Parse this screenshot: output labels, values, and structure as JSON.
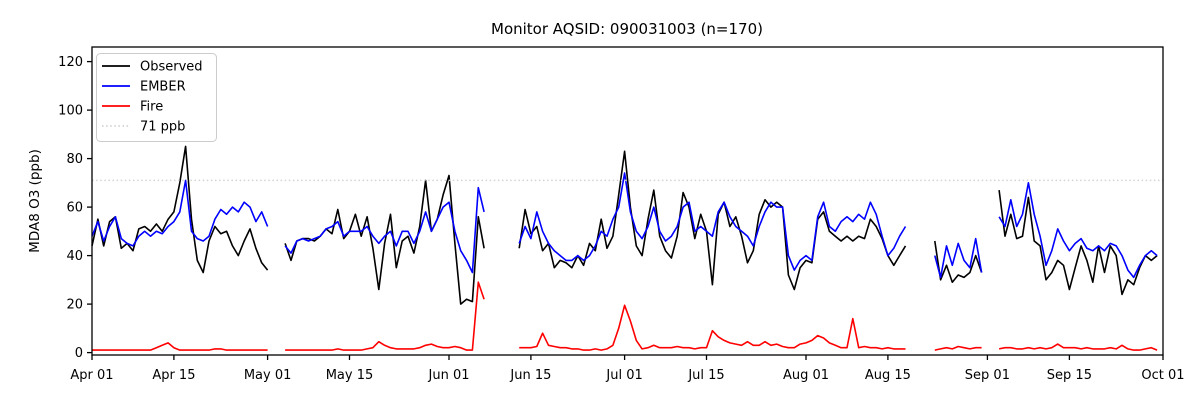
{
  "chart_data": {
    "type": "line",
    "title": "Monitor AQSID: 090031003 (n=170)",
    "ylabel": "MDA8 O3 (ppb)",
    "xlabel": "",
    "ylim": [
      -1,
      126
    ],
    "yticks": [
      0,
      20,
      40,
      60,
      80,
      100,
      120
    ],
    "x_total_days": 183,
    "x_start_label": "Apr 01",
    "x_end_label": "Oct 01",
    "grid": false,
    "legend_position": "upper-left",
    "xticks": [
      {
        "day": 0,
        "label": "Apr 01"
      },
      {
        "day": 14,
        "label": "Apr 15"
      },
      {
        "day": 30,
        "label": "May 01"
      },
      {
        "day": 44,
        "label": "May 15"
      },
      {
        "day": 61,
        "label": "Jun 01"
      },
      {
        "day": 75,
        "label": "Jun 15"
      },
      {
        "day": 91,
        "label": "Jul 01"
      },
      {
        "day": 105,
        "label": "Jul 15"
      },
      {
        "day": 122,
        "label": "Aug 01"
      },
      {
        "day": 136,
        "label": "Aug 15"
      },
      {
        "day": 153,
        "label": "Sep 01"
      },
      {
        "day": 167,
        "label": "Sep 15"
      },
      {
        "day": 183,
        "label": "Oct 01"
      }
    ],
    "threshold": {
      "value": 71,
      "label": "71 ppb",
      "color": "#d3d3d3",
      "style": "dotted"
    },
    "legend": [
      {
        "id": "observed",
        "label": "Observed",
        "color": "#000000",
        "dotted": false
      },
      {
        "id": "ember",
        "label": "EMBER",
        "color": "#0000ff",
        "dotted": false
      },
      {
        "id": "fire",
        "label": "Fire",
        "color": "#ff0000",
        "dotted": false
      },
      {
        "id": "threshold",
        "label": "71 ppb",
        "color": "#d3d3d3",
        "dotted": true
      }
    ],
    "series": [
      {
        "id": "observed",
        "name": "Observed",
        "color": "#000000",
        "values": [
          44,
          55,
          44,
          54,
          56,
          43,
          45,
          42,
          51,
          52,
          50,
          53,
          50,
          55,
          58,
          70,
          85,
          55,
          38,
          33,
          46,
          52,
          49,
          50,
          44,
          40,
          46,
          51,
          43,
          37,
          34,
          null,
          null,
          45,
          38,
          46,
          47,
          47,
          46,
          48,
          51,
          49,
          59,
          47,
          50,
          57,
          48,
          56,
          43,
          26,
          45,
          57,
          35,
          46,
          48,
          41,
          52,
          71,
          50,
          55,
          65,
          73,
          45,
          20,
          22,
          21,
          56,
          43,
          null,
          null,
          null,
          null,
          null,
          43,
          59,
          49,
          52,
          42,
          45,
          35,
          38,
          37,
          35,
          40,
          36,
          45,
          42,
          55,
          43,
          48,
          65,
          83,
          60,
          44,
          40,
          55,
          67,
          48,
          42,
          39,
          48,
          66,
          60,
          47,
          57,
          50,
          28,
          57,
          62,
          52,
          56,
          48,
          37,
          42,
          57,
          63,
          60,
          62,
          60,
          32,
          26,
          35,
          38,
          37,
          55,
          58,
          50,
          48,
          46,
          48,
          46,
          48,
          47,
          55,
          52,
          47,
          40,
          36,
          40,
          44,
          null,
          null,
          null,
          null,
          46,
          30,
          36,
          29,
          32,
          31,
          33,
          40,
          33,
          null,
          null,
          67,
          48,
          57,
          47,
          48,
          64,
          46,
          44,
          30,
          33,
          38,
          36,
          26,
          35,
          44,
          38,
          29,
          44,
          33,
          44,
          40,
          24,
          30,
          28,
          35,
          40,
          38,
          40
        ]
      },
      {
        "id": "ember",
        "name": "EMBER",
        "color": "#0000ff",
        "values": [
          48,
          54,
          46,
          52,
          56,
          47,
          45,
          44,
          48,
          50,
          48,
          50,
          49,
          52,
          54,
          58,
          71,
          50,
          47,
          46,
          48,
          55,
          59,
          57,
          60,
          58,
          62,
          60,
          54,
          58,
          52,
          null,
          null,
          44,
          41,
          46,
          47,
          46,
          47,
          48,
          51,
          52,
          54,
          48,
          50,
          50,
          50,
          52,
          48,
          45,
          48,
          50,
          44,
          50,
          50,
          45,
          50,
          58,
          50,
          55,
          60,
          62,
          50,
          42,
          38,
          33,
          68,
          58,
          null,
          null,
          null,
          null,
          null,
          45,
          52,
          47,
          58,
          50,
          45,
          42,
          40,
          38,
          38,
          40,
          38,
          40,
          44,
          50,
          48,
          55,
          60,
          74,
          58,
          50,
          47,
          52,
          60,
          50,
          46,
          48,
          52,
          60,
          62,
          50,
          52,
          50,
          48,
          58,
          62,
          56,
          52,
          50,
          48,
          44,
          52,
          58,
          62,
          60,
          60,
          40,
          34,
          38,
          40,
          38,
          56,
          62,
          52,
          50,
          54,
          56,
          54,
          57,
          55,
          62,
          57,
          48,
          40,
          43,
          48,
          52,
          null,
          null,
          null,
          null,
          40,
          31,
          44,
          36,
          45,
          38,
          35,
          47,
          33,
          null,
          null,
          56,
          52,
          63,
          52,
          57,
          70,
          57,
          48,
          36,
          42,
          51,
          46,
          42,
          45,
          47,
          43,
          42,
          44,
          42,
          45,
          44,
          40,
          34,
          31,
          36,
          40,
          42,
          40
        ]
      },
      {
        "id": "fire",
        "name": "Fire",
        "color": "#ff0000",
        "values": [
          1,
          1,
          1,
          1,
          1,
          1,
          1,
          1,
          1,
          1,
          1,
          2,
          3,
          4,
          2,
          1,
          1,
          1,
          1,
          1,
          1,
          1.5,
          1.5,
          1,
          1,
          1,
          1,
          1,
          1,
          1,
          1,
          null,
          null,
          1,
          1,
          1,
          1,
          1,
          1,
          1,
          1,
          1,
          1.5,
          1,
          1,
          1,
          1,
          1.5,
          2,
          4.5,
          3,
          2,
          1.5,
          1.5,
          1.5,
          1.5,
          2,
          3,
          3.5,
          2.5,
          2,
          2,
          2.5,
          2,
          1,
          1,
          29,
          22,
          null,
          null,
          null,
          null,
          null,
          2,
          2,
          2,
          2.5,
          8,
          3,
          2.5,
          2,
          2,
          1.5,
          1.5,
          1,
          1,
          1.5,
          1,
          1.5,
          3,
          10,
          19.5,
          13,
          5,
          1.5,
          2,
          3,
          2,
          2,
          2,
          2.5,
          2,
          2,
          1.5,
          2,
          2,
          9,
          6.5,
          5,
          4,
          3.5,
          3,
          4.5,
          3,
          3,
          4.5,
          3,
          3.5,
          2.5,
          2,
          2,
          3.5,
          4,
          5,
          7,
          6,
          4,
          3,
          2,
          2,
          14,
          2,
          2.5,
          2,
          2,
          1.5,
          2,
          1.5,
          1.5,
          1.5,
          null,
          null,
          null,
          null,
          1,
          1.5,
          2,
          1.5,
          2.5,
          2,
          1.5,
          2,
          2,
          null,
          null,
          1.5,
          2,
          2,
          1.5,
          1.5,
          2,
          1.5,
          2,
          1.5,
          2,
          3.5,
          2,
          2,
          2,
          1.5,
          2,
          1.5,
          1.5,
          1.5,
          2,
          1.5,
          3,
          1.5,
          1,
          1,
          1.5,
          2,
          1
        ]
      }
    ]
  }
}
